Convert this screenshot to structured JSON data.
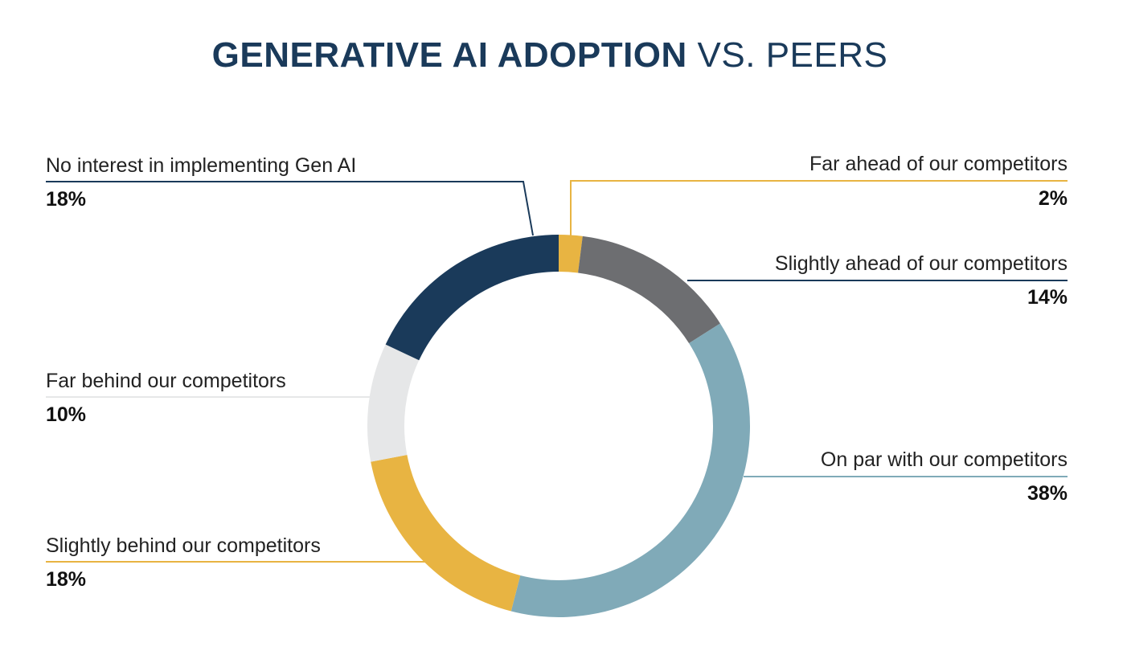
{
  "title": {
    "bold": "GENERATIVE AI ADOPTION",
    "regular": "VS. PEERS"
  },
  "chart_data": {
    "type": "pie",
    "donut": true,
    "title": "GENERATIVE AI ADOPTION VS. PEERS",
    "categories": [
      "Far ahead of our competitors",
      "Slightly ahead of our competitors",
      "On par with our competitors",
      "Slightly behind our competitors",
      "Far behind our competitors",
      "No interest in implementing Gen AI"
    ],
    "values": [
      2,
      14,
      38,
      18,
      10,
      18
    ],
    "labels": [
      "2%",
      "14%",
      "38%",
      "18%",
      "10%",
      "18%"
    ],
    "colors": [
      "#e8b442",
      "#6d6e71",
      "#80aab8",
      "#e8b442",
      "#e6e7e8",
      "#1a3a5a"
    ],
    "start": "top",
    "direction": "clockwise"
  }
}
